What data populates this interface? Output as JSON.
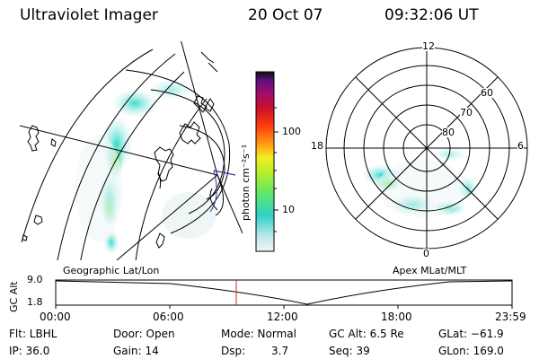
{
  "header": {
    "instrument": "Ultraviolet Imager",
    "date": "20 Oct 07",
    "time": "09:32:06 UT"
  },
  "colorbar": {
    "unit_label": "photon cm⁻²s⁻¹",
    "ticks": [
      "100",
      "10"
    ]
  },
  "polar_plot": {
    "mlt_labels": [
      "12",
      "18",
      "6",
      "0"
    ],
    "mlat_labels": [
      "60",
      "70",
      "80"
    ]
  },
  "map_label": "Geographic Lat/Lon",
  "polar_label": "Apex MLat/MLT",
  "altitude_panel": {
    "ylabel": "GC Alt",
    "yticks": [
      "9.0",
      "1.8"
    ],
    "xticks": [
      "00:00",
      "06:00",
      "12:00",
      "18:00",
      "23:59"
    ]
  },
  "status": {
    "filter": "Flt: LBHL",
    "door": "Door: Open",
    "mode": "Mode: Normal",
    "gc_alt": "GC Alt: 6.5 Re",
    "glat": "GLat: −61.9",
    "ip": "IP: 36.0",
    "gain": "Gain: 14",
    "dsp_label": "Dsp:",
    "dsp_value": "3.7",
    "seq": "Seq: 39",
    "glon": "GLon: 169.0"
  },
  "colors": {
    "background": "#ffffff",
    "foreground": "#000000",
    "time_marker": "#e02020"
  }
}
